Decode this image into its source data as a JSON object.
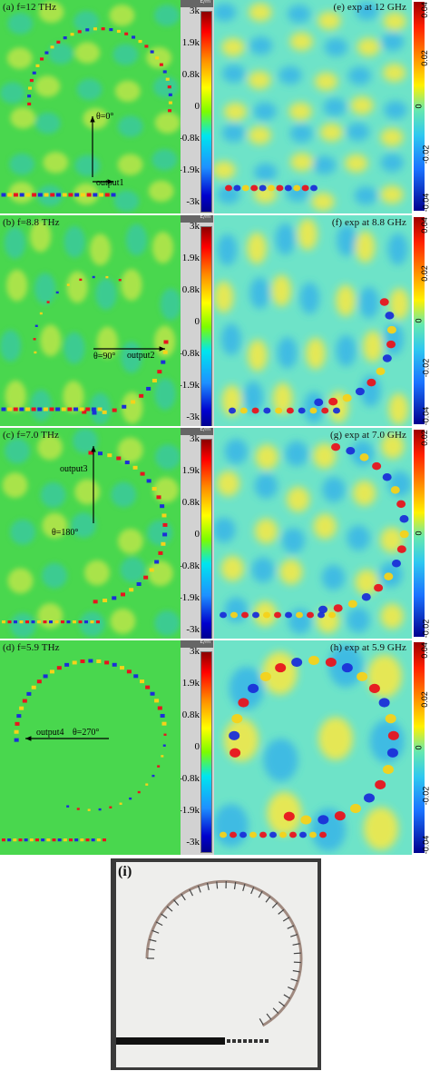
{
  "panels": {
    "a": "(a) f=12 THz",
    "b": "(b) f=8.8 THz",
    "c": "(c) f=7.0 THz",
    "d": "(d) f=5.9 THz",
    "e": "(e) exp at 12 GHz",
    "f": "(f) exp at 8.8 GHz",
    "g": "(g) exp at 7.0 GHz",
    "h": "(h) exp at 5.9 GHz",
    "i": "(i)"
  },
  "annotations": {
    "a_theta": "θ=0°",
    "a_output": "output1",
    "b_theta": "θ=90°",
    "b_output": "output2",
    "c_theta": "θ=180°",
    "c_output": "output3",
    "d_theta": "θ=270°",
    "d_output": "output4"
  },
  "sim_colorbar": {
    "header": "E/m",
    "ticks": [
      "3k",
      "1.9k",
      "0.8k",
      "0",
      "-0.8k",
      "-1.9k",
      "-3k"
    ]
  },
  "exp_colorbars": {
    "e": [
      "0.04",
      "0.02",
      "0",
      "-0.02",
      "-0.04"
    ],
    "f": [
      "0.04",
      "0.02",
      "0",
      "-0.02",
      "-0.04"
    ],
    "g": [
      "0.02",
      "0",
      "-0.02"
    ],
    "h": [
      "0.04",
      "0.02",
      "0",
      "-0.02",
      "-0.04"
    ]
  },
  "colors": {
    "sim_bg": "#49d74e",
    "exp_bg": "#6ee3c8",
    "accent_red": "#e8141e",
    "accent_blue": "#1a2fd8"
  }
}
